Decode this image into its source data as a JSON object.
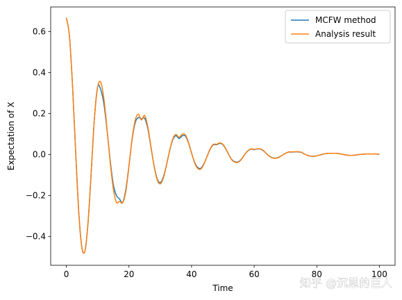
{
  "chart_data": {
    "type": "line",
    "title": "",
    "xlabel": "Time",
    "ylabel": "Expectation of X",
    "xlim": [
      -5,
      105
    ],
    "ylim": [
      -0.54,
      0.72
    ],
    "xticks": [
      0,
      20,
      40,
      60,
      80,
      100
    ],
    "xtick_labels": [
      "0",
      "20",
      "40",
      "60",
      "80",
      "100"
    ],
    "yticks": [
      -0.4,
      -0.2,
      0.0,
      0.2,
      0.4,
      0.6
    ],
    "ytick_labels": [
      "−0.4",
      "−0.2",
      "0.0",
      "0.2",
      "0.4",
      "0.6"
    ],
    "grid": false,
    "legend_position": "top-right",
    "series": [
      {
        "name": "MCFW method",
        "color": "#1f77b4",
        "x": [
          0,
          1,
          2,
          3,
          4,
          5,
          6,
          7,
          8,
          9,
          10,
          11,
          12,
          13,
          14,
          15,
          16,
          17,
          18,
          19,
          20,
          21,
          22,
          23,
          24,
          25,
          26,
          27,
          28,
          29,
          30,
          31,
          32,
          33,
          34,
          35,
          36,
          37,
          38,
          39,
          40,
          41,
          42,
          43,
          44,
          45,
          46,
          47,
          48,
          49,
          50,
          51,
          52,
          53,
          54,
          55,
          56,
          57,
          58,
          59,
          60,
          61,
          62,
          63,
          64,
          65,
          66,
          67,
          68,
          69,
          70,
          71,
          72,
          73,
          74,
          75,
          76,
          77,
          78,
          79,
          80,
          81,
          82,
          83,
          84,
          85,
          86,
          87,
          88,
          89,
          90,
          91,
          92,
          93,
          94,
          95,
          96,
          97,
          98,
          99,
          100
        ],
        "y": [
          0.667,
          0.577,
          0.33,
          0.007,
          -0.288,
          -0.457,
          -0.466,
          -0.319,
          -0.07,
          0.182,
          0.33,
          0.316,
          0.247,
          0.12,
          -0.027,
          -0.146,
          -0.2,
          -0.217,
          -0.233,
          -0.171,
          -0.055,
          0.072,
          0.156,
          0.18,
          0.174,
          0.177,
          0.129,
          0.039,
          -0.052,
          -0.117,
          -0.137,
          -0.109,
          -0.05,
          0.019,
          0.072,
          0.092,
          0.078,
          0.091,
          0.091,
          0.058,
          0.007,
          -0.039,
          -0.064,
          -0.066,
          -0.043,
          -0.007,
          0.028,
          0.048,
          0.048,
          0.055,
          0.048,
          0.025,
          -0.004,
          -0.027,
          -0.036,
          -0.035,
          -0.021,
          0.001,
          0.018,
          0.027,
          0.024,
          0.027,
          0.027,
          0.018,
          0.003,
          -0.009,
          -0.016,
          -0.017,
          -0.012,
          -0.003,
          0.006,
          0.012,
          0.012,
          0.013,
          0.013,
          0.011,
          0.003,
          -0.004,
          -0.008,
          -0.008,
          -0.006,
          -0.002,
          0.002,
          0.005,
          0.006,
          0.006,
          0.006,
          0.005,
          0.002,
          -0.001,
          -0.003,
          -0.004,
          -0.003,
          -0.001,
          0.001,
          0.002,
          0.003,
          0.003,
          0.003,
          0.003,
          0.001
        ]
      },
      {
        "name": "Analysis result",
        "color": "#ff7f0e",
        "x": [
          0,
          1,
          2,
          3,
          4,
          5,
          6,
          7,
          8,
          9,
          10,
          11,
          12,
          13,
          14,
          15,
          16,
          17,
          18,
          19,
          20,
          21,
          22,
          23,
          24,
          25,
          26,
          27,
          28,
          29,
          30,
          31,
          32,
          33,
          34,
          35,
          36,
          37,
          38,
          39,
          40,
          41,
          42,
          43,
          44,
          45,
          46,
          47,
          48,
          49,
          50,
          51,
          52,
          53,
          54,
          55,
          56,
          57,
          58,
          59,
          60,
          61,
          62,
          63,
          64,
          65,
          66,
          67,
          68,
          69,
          70,
          71,
          72,
          73,
          74,
          75,
          76,
          77,
          78,
          79,
          80,
          81,
          82,
          83,
          84,
          85,
          86,
          87,
          88,
          89,
          90,
          91,
          92,
          93,
          94,
          95,
          96,
          97,
          98,
          99,
          100
        ],
        "y": [
          0.667,
          0.577,
          0.33,
          0.007,
          -0.288,
          -0.457,
          -0.466,
          -0.319,
          -0.07,
          0.182,
          0.33,
          0.353,
          0.272,
          0.126,
          -0.036,
          -0.166,
          -0.233,
          -0.228,
          -0.235,
          -0.18,
          -0.057,
          0.076,
          0.168,
          0.197,
          0.169,
          0.191,
          0.138,
          0.042,
          -0.054,
          -0.122,
          -0.143,
          -0.114,
          -0.052,
          0.02,
          0.076,
          0.098,
          0.084,
          0.099,
          0.097,
          0.061,
          0.008,
          -0.042,
          -0.068,
          -0.07,
          -0.045,
          -0.008,
          0.03,
          0.05,
          0.05,
          0.057,
          0.05,
          0.027,
          -0.004,
          -0.028,
          -0.038,
          -0.037,
          -0.022,
          0.001,
          0.019,
          0.028,
          0.025,
          0.028,
          0.028,
          0.019,
          0.003,
          -0.01,
          -0.017,
          -0.018,
          -0.013,
          -0.003,
          0.006,
          0.013,
          0.013,
          0.014,
          0.014,
          0.012,
          0.003,
          -0.004,
          -0.008,
          -0.009,
          -0.006,
          -0.002,
          0.002,
          0.005,
          0.006,
          0.006,
          0.006,
          0.005,
          0.002,
          -0.001,
          -0.003,
          -0.004,
          -0.003,
          -0.001,
          0.001,
          0.002,
          0.003,
          0.003,
          0.003,
          0.003,
          0.001
        ]
      }
    ]
  },
  "watermark": {
    "text": "知乎 @沉思的巨人"
  }
}
